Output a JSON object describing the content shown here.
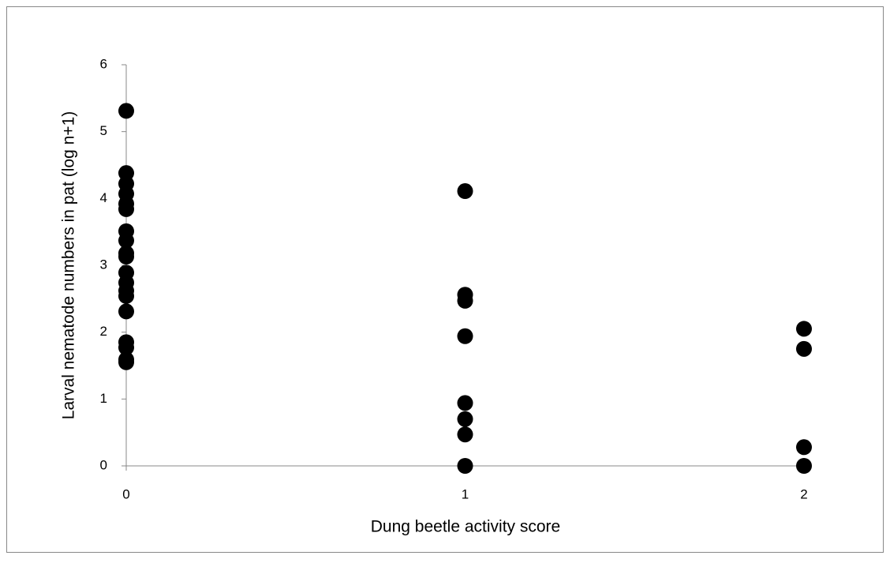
{
  "chart_data": {
    "type": "scatter",
    "x_label": "Dung beetle activity score",
    "y_label": "Larval nematode numbers in pat (log n+1)",
    "x": [
      0,
      0,
      0,
      0,
      0,
      0,
      0,
      0,
      0,
      0,
      0,
      0,
      0,
      0,
      0,
      0,
      0,
      0,
      0,
      1,
      1,
      1,
      1,
      1,
      1,
      1,
      1,
      2,
      2,
      2,
      2
    ],
    "y": [
      5.31,
      4.38,
      4.22,
      4.07,
      3.92,
      3.84,
      3.51,
      3.37,
      3.18,
      3.13,
      2.89,
      2.74,
      2.62,
      2.54,
      2.31,
      1.85,
      1.77,
      1.59,
      1.55,
      4.11,
      2.56,
      2.47,
      1.94,
      0.94,
      0.7,
      0.47,
      0,
      2.05,
      1.75,
      0.28,
      0
    ],
    "color": "#000000",
    "xlim": [
      0,
      2
    ],
    "xticks": [
      0,
      1,
      2
    ],
    "ylim": [
      0,
      6
    ],
    "yticks": [
      0,
      1,
      2,
      3,
      4,
      5,
      6
    ],
    "grid": false
  }
}
